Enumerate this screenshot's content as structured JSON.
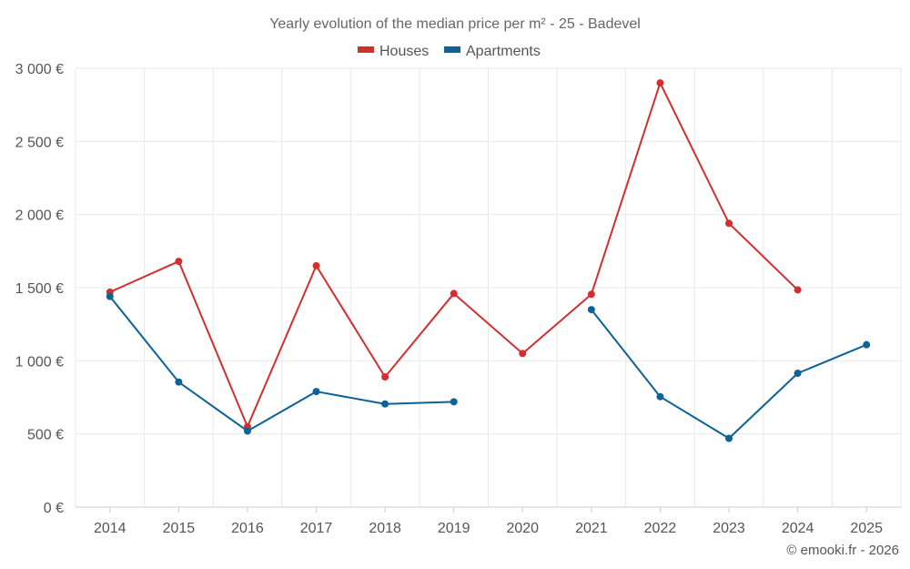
{
  "chart_data": {
    "type": "line",
    "title": "Yearly evolution of the median price per m² - 25 - Badevel",
    "categories": [
      "2014",
      "2015",
      "2016",
      "2017",
      "2018",
      "2019",
      "2020",
      "2021",
      "2022",
      "2023",
      "2024",
      "2025"
    ],
    "y_ticks": [
      "0 €",
      "500 €",
      "1 000 €",
      "1 500 €",
      "2 000 €",
      "2 500 €",
      "3 000 €"
    ],
    "ylim": [
      0,
      3000
    ],
    "legend_position": "top-center",
    "series": [
      {
        "name": "Houses",
        "color": "#d32f2f",
        "values": [
          1470,
          1680,
          550,
          1650,
          890,
          1460,
          1050,
          1455,
          2900,
          1940,
          1485,
          null
        ]
      },
      {
        "name": "Apartments",
        "color": "#0d6296",
        "values": [
          1440,
          855,
          520,
          790,
          705,
          720,
          null,
          1350,
          755,
          470,
          915,
          1110
        ]
      }
    ],
    "credit": "© emooki.fr - 2026"
  }
}
